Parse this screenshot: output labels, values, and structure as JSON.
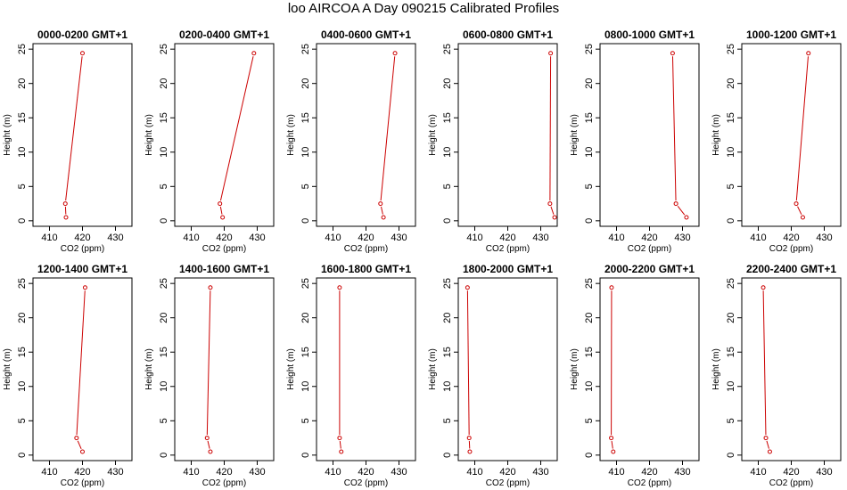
{
  "title": "loo AIRCOA A  Day 090215  Calibrated Profiles",
  "colors": {
    "line": "#cc0000",
    "point": "#cc0000",
    "axis": "#000000"
  },
  "chart_data": {
    "type": "line",
    "xlabel": "CO2 (ppm)",
    "ylabel": "Height (m)",
    "xlim": [
      405,
      435
    ],
    "ylim": [
      0,
      25
    ],
    "xticks": [
      "410",
      "420",
      "430"
    ],
    "yticks": [
      "0",
      "5",
      "10",
      "15",
      "20",
      "25"
    ],
    "grid": false,
    "panels": [
      {
        "title": "0000-0200 GMT+1",
        "points": [
          {
            "x": 415.0,
            "y": 0.5
          },
          {
            "x": 414.8,
            "y": 2.5
          },
          {
            "x": 420.0,
            "y": 24.4
          }
        ]
      },
      {
        "title": "0200-0400 GMT+1",
        "points": [
          {
            "x": 419.5,
            "y": 0.5
          },
          {
            "x": 418.7,
            "y": 2.5
          },
          {
            "x": 429.0,
            "y": 24.4
          }
        ]
      },
      {
        "title": "0400-0600 GMT+1",
        "points": [
          {
            "x": 425.3,
            "y": 0.5
          },
          {
            "x": 424.4,
            "y": 2.5
          },
          {
            "x": 428.8,
            "y": 24.4
          }
        ]
      },
      {
        "title": "0600-0800 GMT+1",
        "points": [
          {
            "x": 434.2,
            "y": 0.5
          },
          {
            "x": 432.8,
            "y": 2.5
          },
          {
            "x": 433.0,
            "y": 24.4
          }
        ]
      },
      {
        "title": "0800-1000 GMT+1",
        "points": [
          {
            "x": 431.2,
            "y": 0.5
          },
          {
            "x": 428.0,
            "y": 2.5
          },
          {
            "x": 427.0,
            "y": 24.4
          }
        ]
      },
      {
        "title": "1000-1200 GMT+1",
        "points": [
          {
            "x": 423.5,
            "y": 0.5
          },
          {
            "x": 421.5,
            "y": 2.5
          },
          {
            "x": 425.2,
            "y": 24.4
          }
        ]
      },
      {
        "title": "1200-1400 GMT+1",
        "points": [
          {
            "x": 420.0,
            "y": 0.5
          },
          {
            "x": 418.2,
            "y": 2.5
          },
          {
            "x": 420.8,
            "y": 24.4
          }
        ]
      },
      {
        "title": "1400-1600 GMT+1",
        "points": [
          {
            "x": 415.8,
            "y": 0.5
          },
          {
            "x": 414.8,
            "y": 2.5
          },
          {
            "x": 415.8,
            "y": 24.4
          }
        ]
      },
      {
        "title": "1600-1800 GMT+1",
        "points": [
          {
            "x": 412.5,
            "y": 0.5
          },
          {
            "x": 412.0,
            "y": 2.5
          },
          {
            "x": 412.0,
            "y": 24.4
          }
        ]
      },
      {
        "title": "1800-2000 GMT+1",
        "points": [
          {
            "x": 408.5,
            "y": 0.5
          },
          {
            "x": 408.3,
            "y": 2.5
          },
          {
            "x": 407.8,
            "y": 24.4
          }
        ]
      },
      {
        "title": "2000-2200 GMT+1",
        "points": [
          {
            "x": 409.0,
            "y": 0.5
          },
          {
            "x": 408.4,
            "y": 2.5
          },
          {
            "x": 408.5,
            "y": 24.4
          }
        ]
      },
      {
        "title": "2200-2400 GMT+1",
        "points": [
          {
            "x": 413.5,
            "y": 0.5
          },
          {
            "x": 412.3,
            "y": 2.5
          },
          {
            "x": 411.5,
            "y": 24.4
          }
        ]
      }
    ]
  }
}
